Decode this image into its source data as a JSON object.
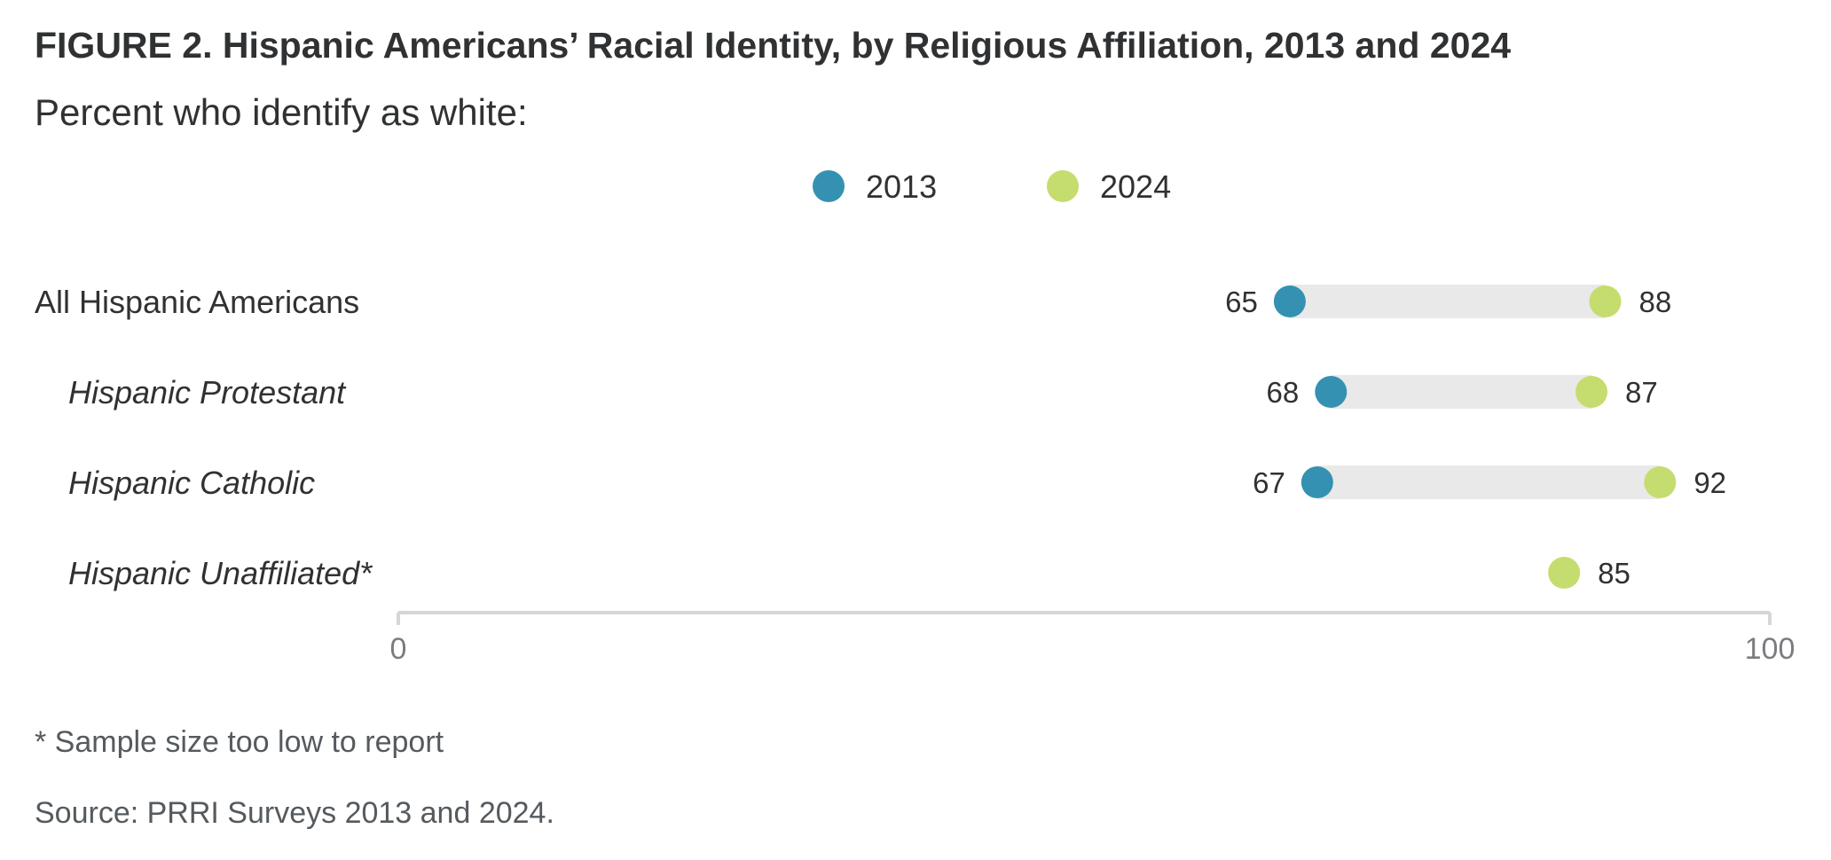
{
  "header": {
    "title": "FIGURE 2.  Hispanic Americans’ Racial Identity, by Religious Affiliation, 2013 and 2024",
    "subtitle": "Percent who identify as white:"
  },
  "footer": {
    "footnote": "* Sample size too low to report",
    "source": "Source: PRRI Surveys 2013 and 2024."
  },
  "colors": {
    "series_2013": "#3491b1",
    "series_2024": "#c5dc6e",
    "range_bar": "#e8e9e8",
    "axis": "#d6d6d6",
    "label_text": "#2f3133",
    "tick_text": "#7a7d80"
  },
  "chart_data": {
    "type": "dumbbell",
    "xlim": [
      0,
      100
    ],
    "x_ticks": [
      "0",
      "100"
    ],
    "legend": {
      "placement": "top-center",
      "entries": [
        "2013",
        "2024"
      ]
    },
    "categories": [
      "All Hispanic Americans",
      "Hispanic Protestant",
      "Hispanic Catholic",
      "Hispanic Unaffiliated*"
    ],
    "category_italic": [
      false,
      true,
      true,
      true
    ],
    "series": [
      {
        "name": "2013",
        "values": [
          65,
          68,
          67,
          null
        ]
      },
      {
        "name": "2024",
        "values": [
          88,
          87,
          92,
          85
        ]
      }
    ],
    "grid": false
  }
}
